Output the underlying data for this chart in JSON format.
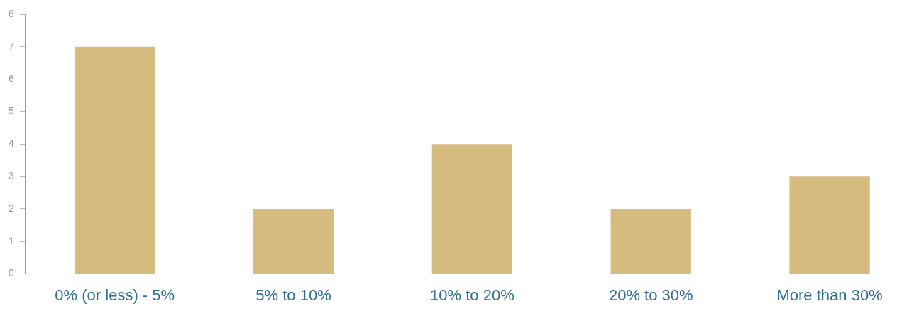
{
  "chart_data": {
    "type": "bar",
    "categories": [
      "0% (or less) - 5%",
      "5% to 10%",
      "10% to 20%",
      "20% to 30%",
      "More than 30%"
    ],
    "values": [
      7,
      2,
      4,
      2,
      3
    ],
    "color": "#d6bd7f",
    "ylim": [
      0,
      8
    ],
    "yticks": [
      0,
      1,
      2,
      3,
      4,
      5,
      6,
      7,
      8
    ],
    "grid": false,
    "legend": false
  }
}
